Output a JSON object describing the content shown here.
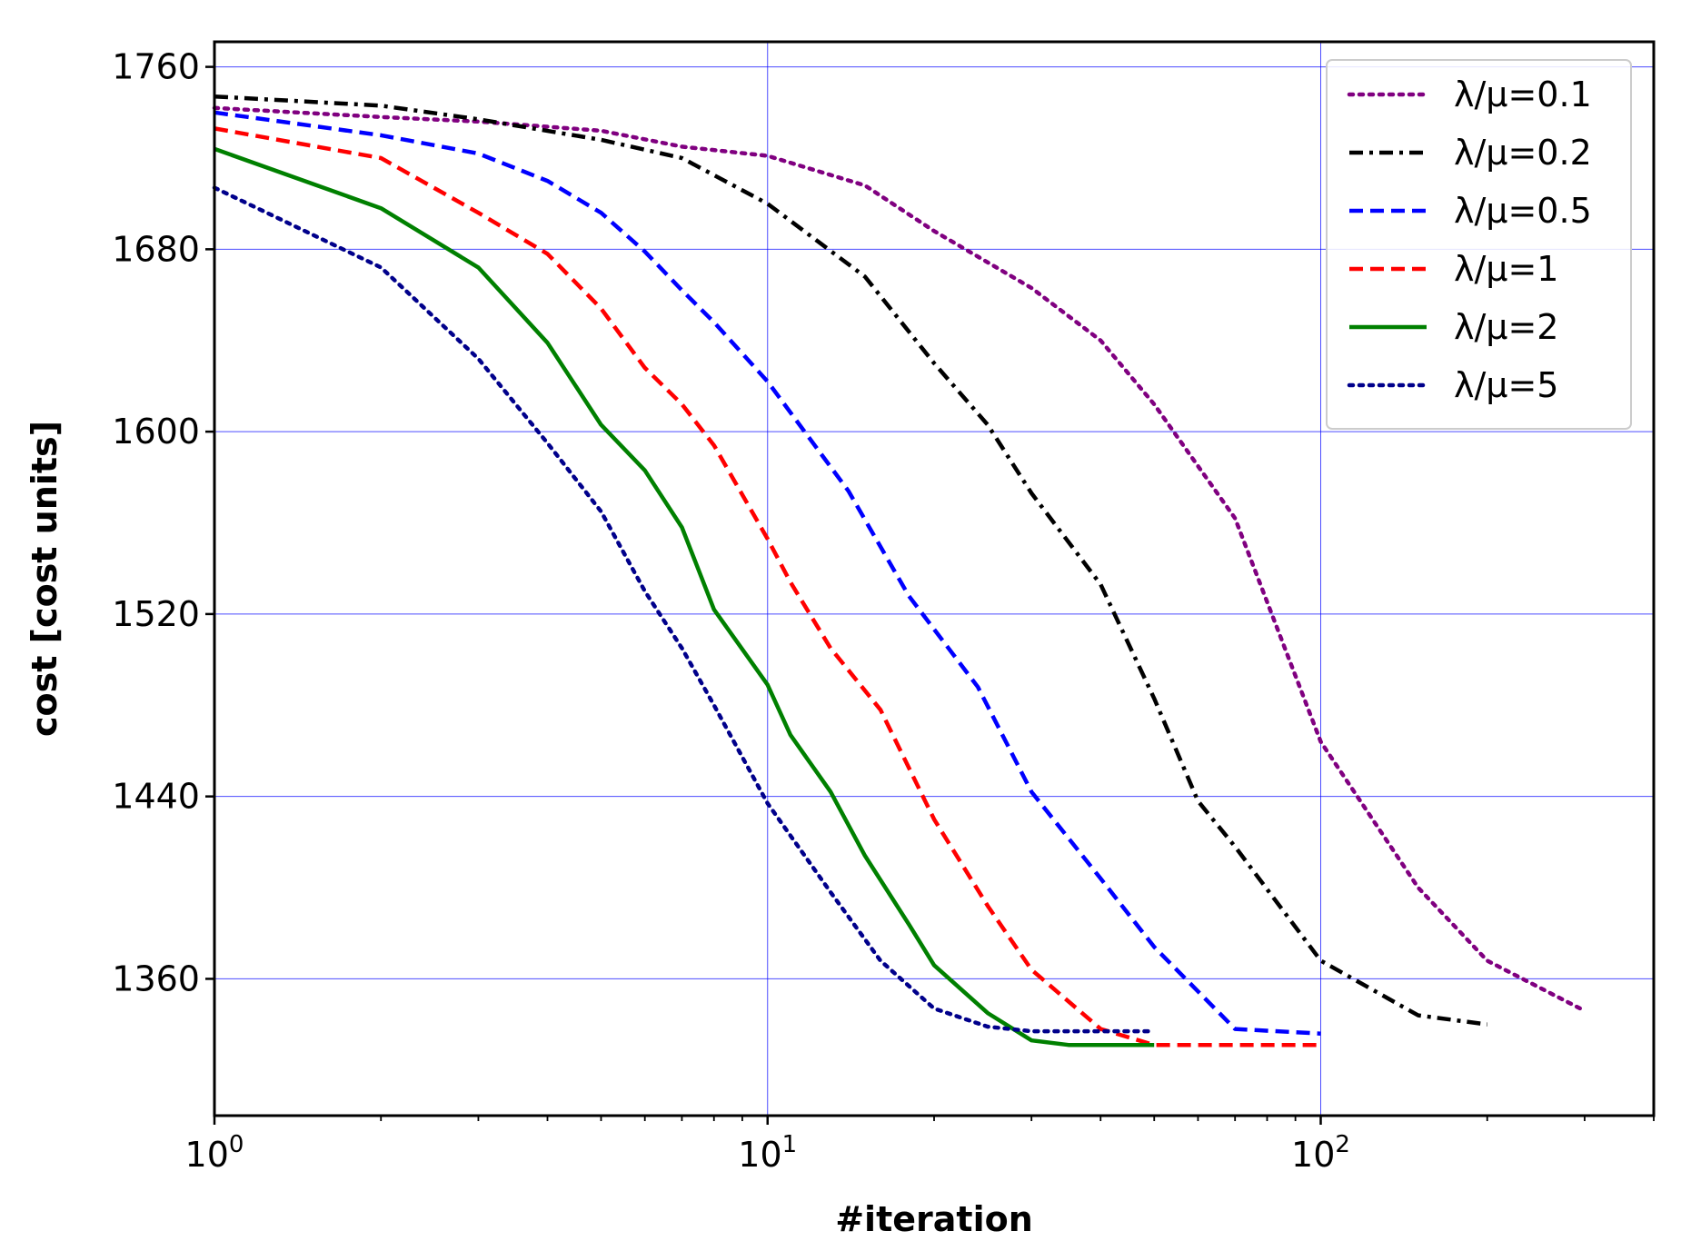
{
  "chart_data": {
    "type": "line",
    "title": "",
    "xlabel": "#iteration",
    "ylabel": "cost [cost units]",
    "xscale": "log",
    "xlim": [
      1,
      400
    ],
    "ylim": [
      1300,
      1771
    ],
    "grid": true,
    "legend_position": "top-right",
    "xticks": [
      {
        "value": 1,
        "base": "10",
        "exp": "0"
      },
      {
        "value": 10,
        "base": "10",
        "exp": "1"
      },
      {
        "value": 100,
        "base": "10",
        "exp": "2"
      }
    ],
    "yticks": [
      {
        "value": 1360,
        "label": "1360"
      },
      {
        "value": 1440,
        "label": "1440"
      },
      {
        "value": 1520,
        "label": "1520"
      },
      {
        "value": 1600,
        "label": "1600"
      },
      {
        "value": 1680,
        "label": "1680"
      },
      {
        "value": 1760,
        "label": "1760"
      }
    ],
    "series": [
      {
        "name": "λ/μ=0.1",
        "color": "#800080",
        "style": "dotted",
        "points": [
          [
            1,
            1742
          ],
          [
            2,
            1738
          ],
          [
            3,
            1736
          ],
          [
            5,
            1732
          ],
          [
            7,
            1725
          ],
          [
            10,
            1721
          ],
          [
            15,
            1708
          ],
          [
            20,
            1688
          ],
          [
            30,
            1663
          ],
          [
            40,
            1640
          ],
          [
            50,
            1612
          ],
          [
            70,
            1562
          ],
          [
            100,
            1464
          ],
          [
            150,
            1400
          ],
          [
            200,
            1368
          ],
          [
            300,
            1346
          ]
        ]
      },
      {
        "name": "λ/μ=0.2",
        "color": "#000000",
        "style": "dashdot",
        "points": [
          [
            1,
            1747
          ],
          [
            2,
            1743
          ],
          [
            3,
            1737
          ],
          [
            5,
            1728
          ],
          [
            7,
            1720
          ],
          [
            10,
            1700
          ],
          [
            15,
            1668
          ],
          [
            20,
            1630
          ],
          [
            25,
            1603
          ],
          [
            30,
            1573
          ],
          [
            40,
            1533
          ],
          [
            50,
            1483
          ],
          [
            60,
            1438
          ],
          [
            70,
            1418
          ],
          [
            100,
            1368
          ],
          [
            150,
            1344
          ],
          [
            200,
            1340
          ]
        ]
      },
      {
        "name": "λ/μ=0.5",
        "color": "#0000ff",
        "style": "dashed",
        "points": [
          [
            1,
            1740
          ],
          [
            2,
            1730
          ],
          [
            3,
            1722
          ],
          [
            4,
            1710
          ],
          [
            5,
            1696
          ],
          [
            6,
            1679
          ],
          [
            7,
            1662
          ],
          [
            8,
            1648
          ],
          [
            10,
            1622
          ],
          [
            14,
            1574
          ],
          [
            18,
            1528
          ],
          [
            24,
            1488
          ],
          [
            30,
            1442
          ],
          [
            40,
            1404
          ],
          [
            50,
            1374
          ],
          [
            70,
            1338
          ],
          [
            100,
            1336
          ]
        ]
      },
      {
        "name": "λ/μ=1",
        "color": "#ff0000",
        "style": "dashed",
        "points": [
          [
            1,
            1733
          ],
          [
            2,
            1720
          ],
          [
            3,
            1696
          ],
          [
            4,
            1678
          ],
          [
            5,
            1654
          ],
          [
            6,
            1628
          ],
          [
            7,
            1612
          ],
          [
            8,
            1594
          ],
          [
            10,
            1553
          ],
          [
            11,
            1534
          ],
          [
            13,
            1505
          ],
          [
            16,
            1478
          ],
          [
            20,
            1430
          ],
          [
            25,
            1392
          ],
          [
            30,
            1364
          ],
          [
            40,
            1338
          ],
          [
            50,
            1331
          ],
          [
            100,
            1331
          ]
        ]
      },
      {
        "name": "λ/μ=2",
        "color": "#008000",
        "style": "solid",
        "points": [
          [
            1,
            1724
          ],
          [
            2,
            1698
          ],
          [
            3,
            1672
          ],
          [
            4,
            1639
          ],
          [
            5,
            1603
          ],
          [
            6,
            1583
          ],
          [
            7,
            1558
          ],
          [
            8,
            1522
          ],
          [
            10,
            1489
          ],
          [
            11,
            1467
          ],
          [
            13,
            1442
          ],
          [
            15,
            1414
          ],
          [
            18,
            1384
          ],
          [
            20,
            1366
          ],
          [
            25,
            1345
          ],
          [
            30,
            1333
          ],
          [
            35,
            1331
          ],
          [
            50,
            1331
          ]
        ]
      },
      {
        "name": "λ/μ=5",
        "color": "#00008b",
        "style": "dotted",
        "points": [
          [
            1,
            1707
          ],
          [
            2,
            1672
          ],
          [
            3,
            1632
          ],
          [
            4,
            1595
          ],
          [
            5,
            1565
          ],
          [
            6,
            1530
          ],
          [
            7,
            1505
          ],
          [
            8,
            1480
          ],
          [
            10,
            1437
          ],
          [
            13,
            1398
          ],
          [
            16,
            1368
          ],
          [
            20,
            1347
          ],
          [
            25,
            1339
          ],
          [
            30,
            1337
          ],
          [
            50,
            1337
          ]
        ]
      }
    ]
  }
}
